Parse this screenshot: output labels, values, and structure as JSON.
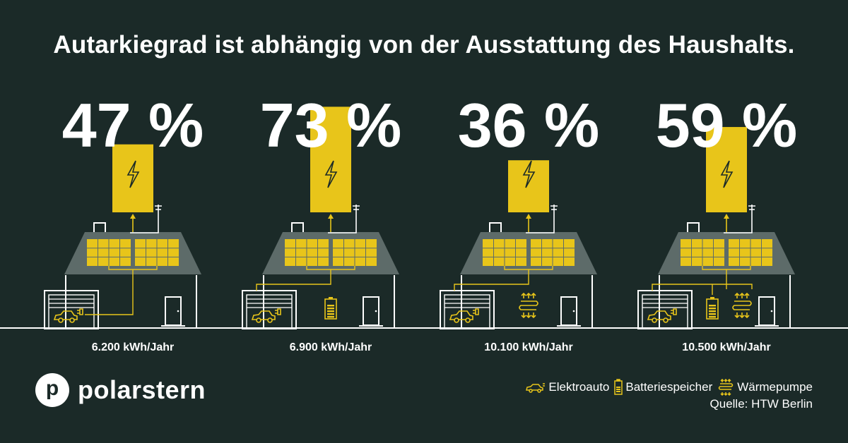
{
  "title": "Autarkiegrad ist abhängig von der Ausstattung des Haushalts.",
  "chart_data": {
    "type": "bar",
    "title": "Autarkiegrad ist abhängig von der Ausstattung des Haushalts.",
    "categories": [
      "6.200 kWh/Jahr",
      "6.900 kWh/Jahr",
      "10.100 kWh/Jahr",
      "10.500 kWh/Jahr"
    ],
    "values": [
      47,
      73,
      36,
      59
    ],
    "unit": "%",
    "value_labels": [
      "47 %",
      "73 %",
      "36 %",
      "59 %"
    ],
    "equipment": [
      [
        "Elektroauto"
      ],
      [
        "Elektroauto",
        "Batteriespeicher"
      ],
      [
        "Elektroauto",
        "Wärmepumpe"
      ],
      [
        "Elektroauto",
        "Batteriespeicher",
        "Wärmepumpe"
      ]
    ],
    "colors": {
      "background": "#1b2a28",
      "bar": "#e8c51a",
      "house": "#5d6b69",
      "line": "#ffffff"
    }
  },
  "legend": {
    "items": [
      {
        "label": "Elektroauto",
        "icon": "car-icon"
      },
      {
        "label": "Batteriespeicher",
        "icon": "battery-icon"
      },
      {
        "label": "Wärmepumpe",
        "icon": "heat-pump-icon"
      }
    ]
  },
  "source": "Quelle: HTW Berlin",
  "brand": {
    "name": "polarstern",
    "mark": "p"
  }
}
